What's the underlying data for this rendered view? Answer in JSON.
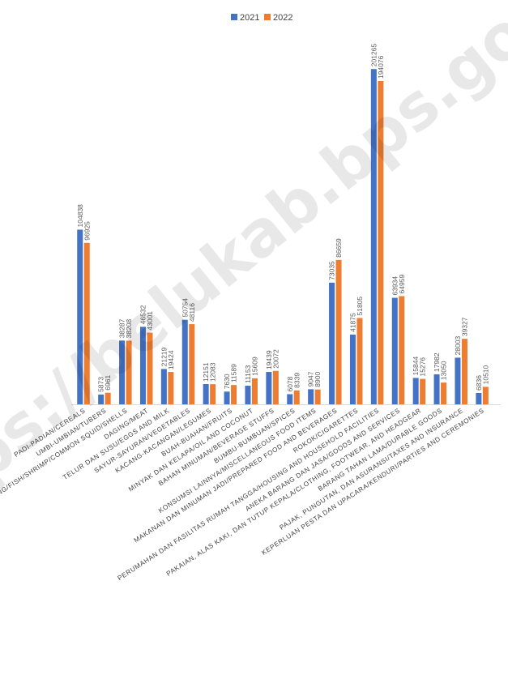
{
  "chart_data": {
    "type": "bar",
    "title": "",
    "xlabel": "",
    "ylabel": "",
    "ylim": [
      0,
      215000
    ],
    "legend_position": "top-center",
    "grid": false,
    "colors": {
      "2021": "#4472C4",
      "2022": "#ED7D31"
    },
    "categories": [
      "PADI-PADIAN/CEREALS",
      "UMBI-UMBIAN/TUBERS",
      "IKAN/UDANG/CUMI/KERANG/FISH/SHRIMP/COMMON SQUID/SHELLS",
      "DAGING/MEAT",
      "TELUR DAN SUSU/EGGS AND MILK",
      "SAYUR-SAYURAN/VEGETABLES",
      "KACANG-KACANGAN/LEGUMES",
      "BUAH-BUAHAN/FRUITS",
      "MINYAK DAN KELAPA/OIL AND COCONUT",
      "BAHAN MINUMAN/BEVERAGE STUFFS",
      "BUMBU-BUMBUAN/SPICES",
      "KONSUMSI LAINNYA/MISCELLANEOUS FOOD ITEMS",
      "MAKANAN DAN MINUMAN JADI/PREPARED FOOD AND BEVERAGES",
      "ROKOK/CIGARETTES",
      "PERUMAHAN DAN FASILITAS RUMAH TANGGA/HOUSING AND HOUSEHOLD FACILITIES",
      "ANEKA BARANG DAN JASA/GOODS AND SERVICES",
      "PAKAIAN, ALAS KAKI, DAN TUTUP KEPALA/CLOTHING, FOOTWEAR, AND HEADGEAR",
      "BARANG TAHAN LAMA/DURABLE GOODS",
      "PAJAK, PUNGUTAN, DAN ASURANSI/TAXES AND INSURANCE",
      "KEPERLUAN PESTA DAN UPACARA/KENDURI/PARTIES AND CEREMONIES"
    ],
    "series": [
      {
        "name": "2021",
        "values": [
          104838,
          5873,
          38287,
          46532,
          21219,
          50754,
          12151,
          7630,
          11153,
          19439,
          6078,
          9047,
          73035,
          41875,
          201265,
          63934,
          15844,
          17982,
          28003,
          6836
        ]
      },
      {
        "name": "2022",
        "values": [
          96925,
          6961,
          38208,
          43001,
          19424,
          48116,
          12083,
          11589,
          15609,
          20072,
          8339,
          8900,
          86659,
          51805,
          194076,
          64959,
          15276,
          13050,
          39327,
          10510
        ]
      }
    ]
  },
  "watermark": "https://belukab.bps.go.id"
}
